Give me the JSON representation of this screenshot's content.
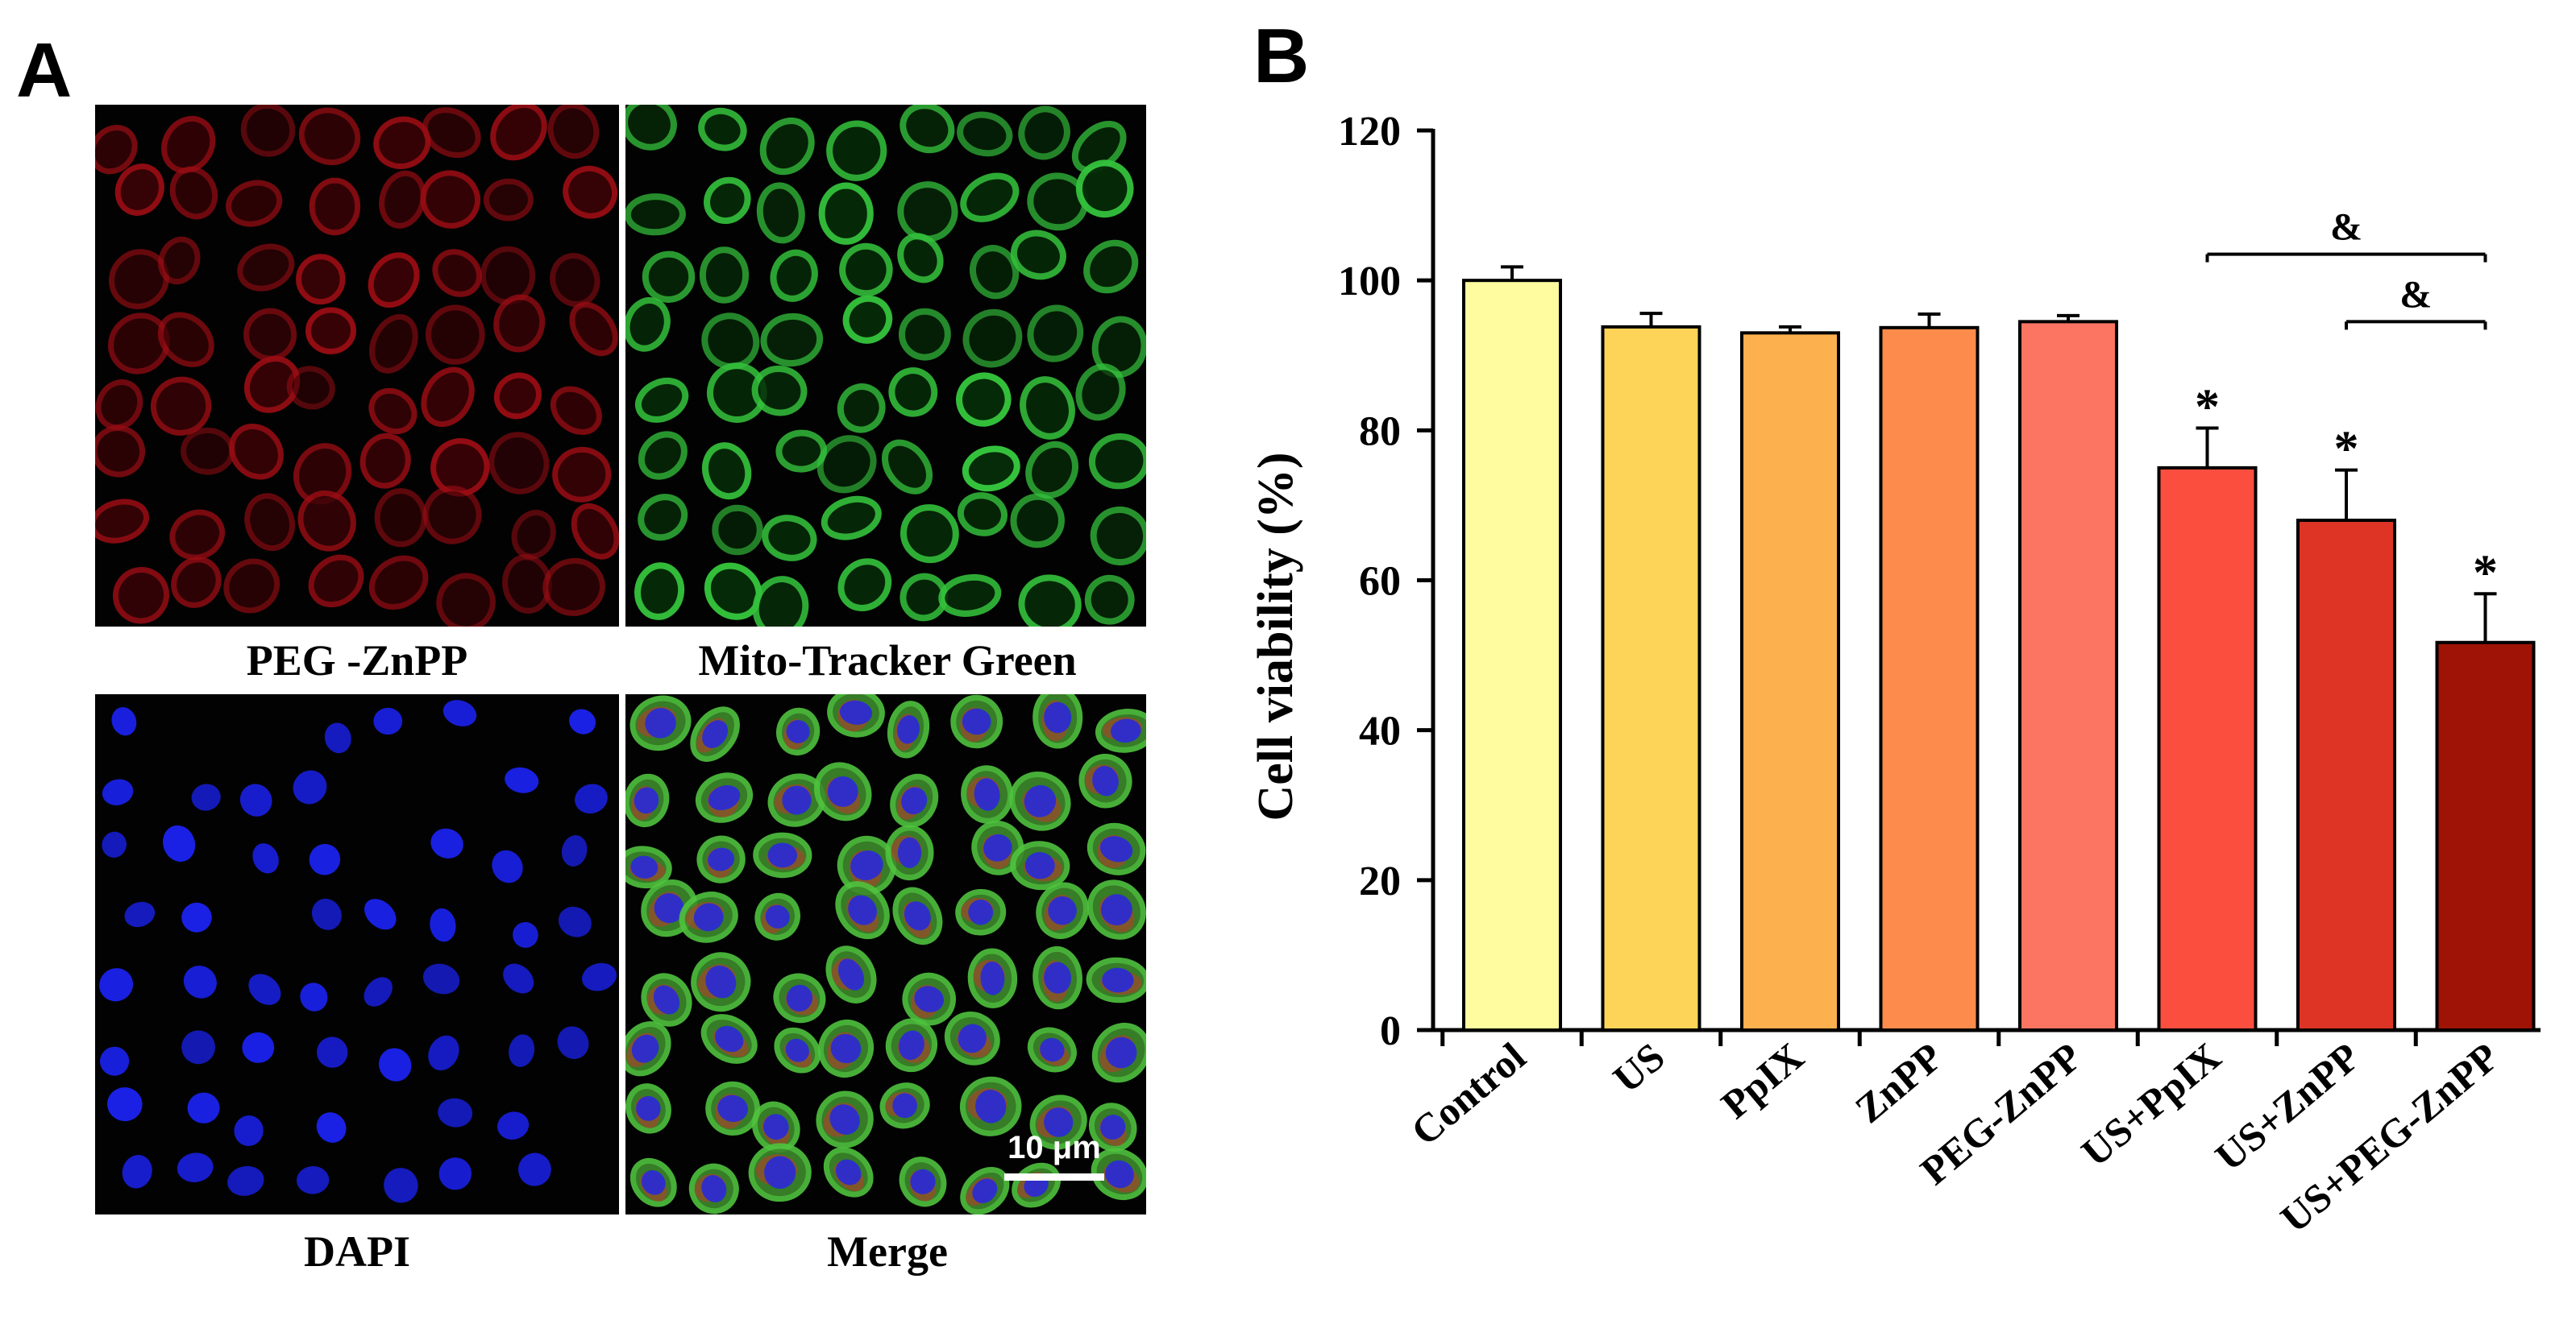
{
  "panels": {
    "a_letter": "A",
    "b_letter": "B"
  },
  "micrographs": [
    {
      "label": "PEG -ZnPP",
      "stain": "red",
      "color": "#c4141e"
    },
    {
      "label": "Mito-Tracker Green",
      "stain": "green",
      "color": "#2fc23a"
    },
    {
      "label": "DAPI",
      "stain": "blue",
      "color": "#1c22e6"
    },
    {
      "label": "Merge",
      "stain": "merge",
      "color": "#3fa83a"
    }
  ],
  "scale_bar": {
    "label": "10 μm"
  },
  "chart_data": {
    "type": "bar",
    "title": "",
    "xlabel": "",
    "ylabel": "Cell viability (%)",
    "ylim": [
      0,
      120
    ],
    "yticks": [
      0,
      20,
      40,
      60,
      80,
      100,
      120
    ],
    "categories": [
      "Control",
      "US",
      "PpIX",
      "ZnPP",
      "PEG-ZnPP",
      "US+PpIX",
      "US+ZnPP",
      "US+PEG-ZnPP"
    ],
    "values": [
      100,
      93.8,
      93.0,
      93.7,
      94.5,
      75.0,
      68.0,
      51.7
    ],
    "errors": [
      1.8,
      1.8,
      0.8,
      1.8,
      0.8,
      5.3,
      6.7,
      6.5
    ],
    "colors": [
      "#fefc9e",
      "#fdd458",
      "#fdb04e",
      "#fd8c4c",
      "#fc7562",
      "#fb4e3f",
      "#dd3426",
      "#9e1305"
    ],
    "significance": [
      {
        "category": "US+PpIX",
        "mark": "*"
      },
      {
        "category": "US+ZnPP",
        "mark": "*"
      },
      {
        "category": "US+PEG-ZnPP",
        "mark": "*"
      }
    ],
    "comparisons": [
      {
        "from": "US+PpIX",
        "to": "US+PEG-ZnPP",
        "mark": "&",
        "y": 103.5
      },
      {
        "from": "US+ZnPP",
        "to": "US+PEG-ZnPP",
        "mark": "&",
        "y": 94.5
      }
    ],
    "grid": false,
    "legend": "none"
  }
}
